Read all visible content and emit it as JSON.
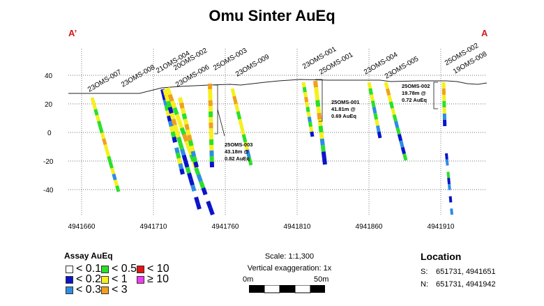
{
  "title": "Omu Sinter AuEq",
  "section_ends": {
    "left": "A’",
    "right": "A"
  },
  "axes": {
    "y_ticks": [
      "40",
      "20",
      "0",
      "-20",
      "-40"
    ],
    "x_ticks": [
      "4941660",
      "4941710",
      "4941760",
      "4941810",
      "4941860",
      "4941910"
    ]
  },
  "holes": [
    {
      "label": "23OMS-007"
    },
    {
      "label": "23OMS-008"
    },
    {
      "label": "21OMS-004"
    },
    {
      "label": "20OMS-002"
    },
    {
      "label": "23OMS-006"
    },
    {
      "label": "25OMS-003"
    },
    {
      "label": "23OMS-009"
    },
    {
      "label": "23OMS-001"
    },
    {
      "label": "25OMS-001"
    },
    {
      "label": "23OMS-004"
    },
    {
      "label": "23OMS-005"
    },
    {
      "label": "25OMS-002"
    },
    {
      "label": "19OMS-008"
    }
  ],
  "intercepts": [
    {
      "hole": "25OMS-003",
      "length": "43.18m @",
      "grade": "0.82 AuEq"
    },
    {
      "hole": "25OMS-001",
      "length": "41.81m @",
      "grade": "0.69 AuEq"
    },
    {
      "hole": "25OMS-002",
      "length": "19.78m @",
      "grade": "0.72 AuEq"
    }
  ],
  "legend": {
    "title": "Assay AuEq",
    "items": [
      {
        "label": "< 0.1",
        "color": "#ffffff"
      },
      {
        "label": "< 0.2",
        "color": "#0a14c8"
      },
      {
        "label": "< 0.3",
        "color": "#2d8ce6"
      },
      {
        "label": "< 0.5",
        "color": "#2adf2a"
      },
      {
        "label": "< 1",
        "color": "#f5f01e"
      },
      {
        "label": "< 3",
        "color": "#f0a01e"
      },
      {
        "label": "< 10",
        "color": "#e61414"
      },
      {
        "label": "≥ 10",
        "color": "#f03cf0"
      }
    ]
  },
  "scale": {
    "text": "Scale: 1:1,300",
    "exaggeration": "Vertical exaggeration: 1x",
    "bar_start": "0m",
    "bar_end": "50m"
  },
  "location": {
    "title": "Location",
    "rows": [
      {
        "key": "S:",
        "value": "651731, 4941651"
      },
      {
        "key": "N:",
        "value": "651731, 4941942"
      }
    ]
  }
}
